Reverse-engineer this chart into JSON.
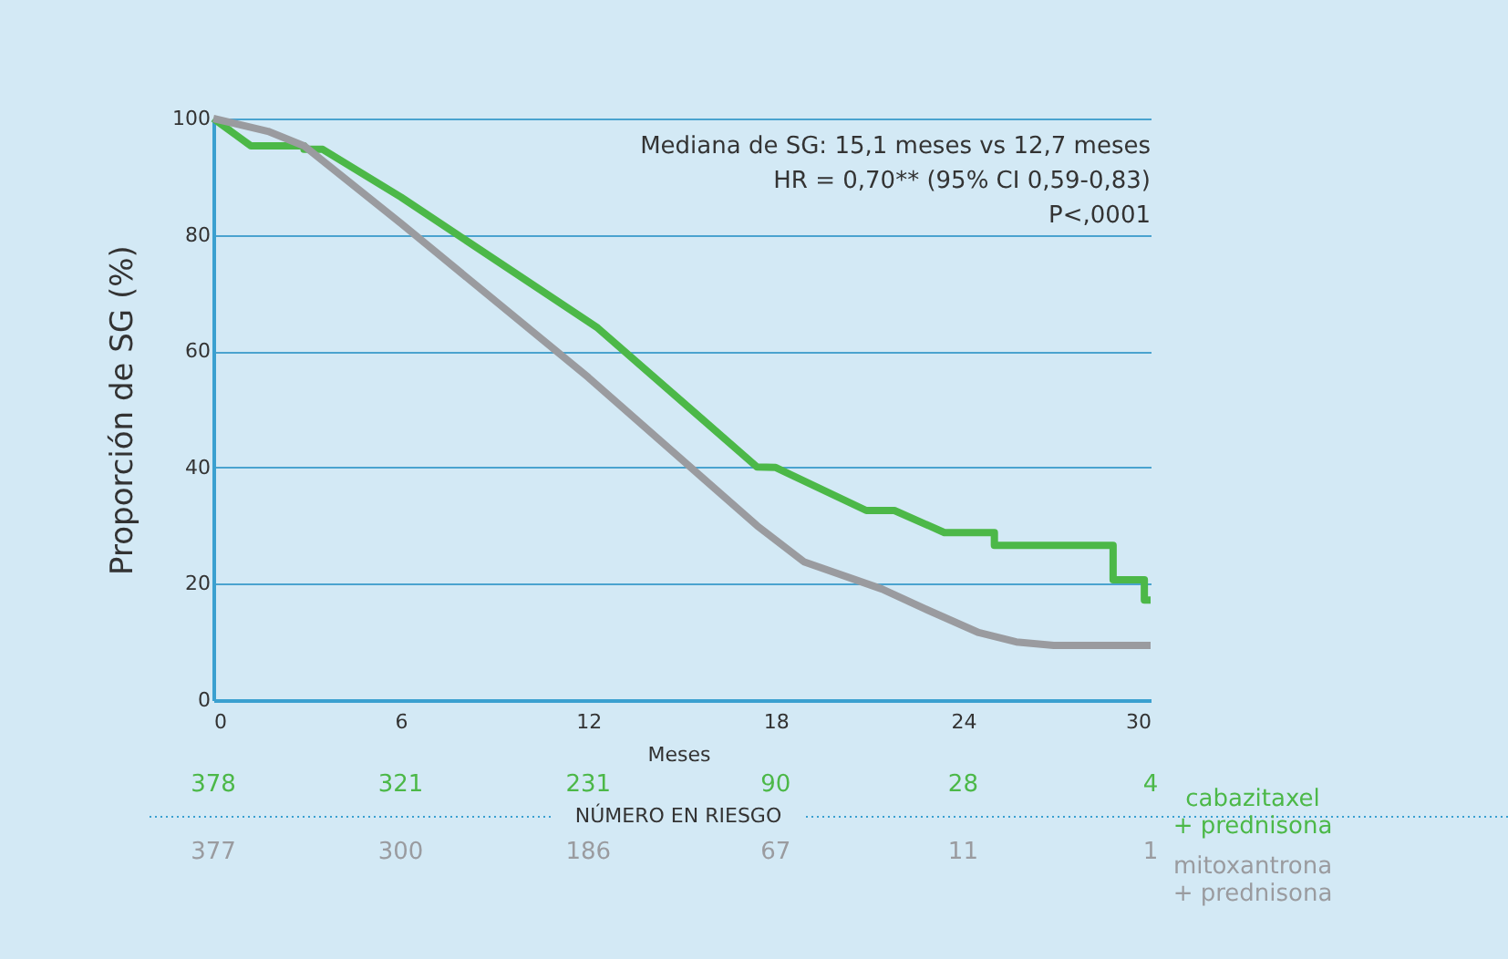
{
  "chart_data": {
    "type": "line",
    "xlabel": "Meses",
    "ylabel": "Proporción de SG (%)",
    "xlim": [
      0,
      30
    ],
    "xticks": [
      0,
      6,
      12,
      18,
      24,
      30
    ],
    "ylim": [
      0,
      100
    ],
    "yticks": [
      0,
      20,
      40,
      60,
      80,
      100
    ],
    "grid": "y",
    "legend": false,
    "marker": "none",
    "line_style": "solid",
    "series": [
      {
        "name": "cabazitaxel + prednisona",
        "color": "#4cb848",
        "x": [
          0,
          1.2,
          2.9,
          2.9,
          3.5,
          6,
          12.3,
          17.4,
          18.0,
          20.9,
          21.8,
          23.4,
          25.0,
          25.0,
          28.8,
          28.8,
          29.8,
          29.8,
          30
        ],
        "values": [
          100,
          95.3,
          95.3,
          94.7,
          94.7,
          86.5,
          64,
          40.1,
          40,
          32.6,
          32.6,
          28.8,
          28.8,
          26.6,
          26.6,
          20.7,
          20.7,
          17.2,
          17.2
        ]
      },
      {
        "name": "mitoxantrona + prednisona",
        "color": "#9a9b9f",
        "x": [
          0,
          1.75,
          2.9,
          6,
          12,
          17.4,
          18.9,
          21.4,
          22.9,
          24.5,
          25.7,
          26.9,
          30
        ],
        "values": [
          100,
          97.8,
          95.3,
          82,
          55.5,
          30,
          23.8,
          19.1,
          15.4,
          11.6,
          10.0,
          9.4,
          9.4
        ]
      }
    ],
    "annotations": [
      "Mediana de SG: 15,1 meses vs 12,7 meses",
      "HR = 0,70**  (95% CI 0,59-0,83)",
      "P<,0001",
      "NÚMERO EN RIESGO",
      "378",
      "321",
      "231",
      "90",
      "28",
      "4",
      "377",
      "300",
      "186",
      "67",
      "11",
      "1"
    ]
  }
}
